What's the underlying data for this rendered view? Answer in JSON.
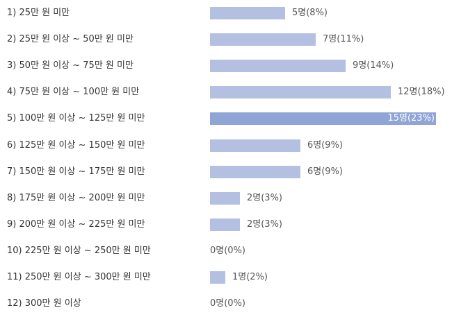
{
  "chart_data": {
    "type": "bar",
    "orientation": "horizontal",
    "categories": [
      "1) 25만 원 미만",
      "2) 25만 원 이상 ~ 50만 원 미만",
      "3) 50만 원 이상 ~ 75만 원 미만",
      "4) 75만 원 이상 ~ 100만 원 미만",
      "5) 100만 원 이상 ~ 125만 원 미만",
      "6) 125만 원 이상 ~ 150만 원 미만",
      "7) 150만 원 이상 ~ 175만 원 미만",
      "8) 175만 원 이상 ~ 200만 원 미만",
      "9) 200만 원 이상 ~ 225만 원 미만",
      "10) 225만 원 이상 ~ 250만 원 미만",
      "11) 250만 원 이상 ~ 300만 원 미만",
      "12) 300만 원 이상"
    ],
    "values": [
      5,
      7,
      9,
      12,
      15,
      6,
      6,
      2,
      2,
      0,
      1,
      0
    ],
    "value_labels": [
      "5명(8%)",
      "7명(11%)",
      "9명(14%)",
      "12명(18%)",
      "15명(23%)",
      "6명(9%)",
      "6명(9%)",
      "2명(3%)",
      "2명(3%)",
      "0명(0%)",
      "1명(2%)",
      "0명(0%)"
    ],
    "title": "",
    "xlabel": "",
    "ylabel": "",
    "xlim": [
      0,
      15
    ],
    "grid": false,
    "colors": {
      "bar": "#b3c0e2",
      "bar_max": "#8fa5d6",
      "label": "#333333",
      "value_label": "#555555",
      "value_label_inside": "#ffffff"
    }
  }
}
